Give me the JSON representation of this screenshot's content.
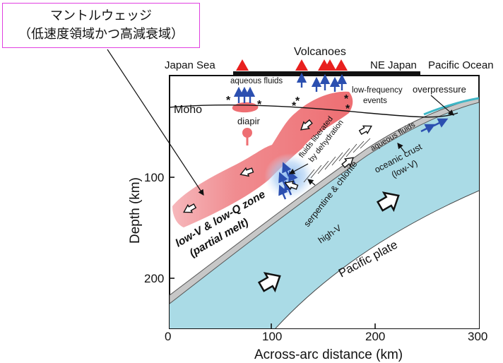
{
  "callout": {
    "line1": "マントルウェッジ",
    "line2": "（低速度領域かつ高減衰域）"
  },
  "top_labels": {
    "japan_sea": "Japan Sea",
    "volcanoes": "Volcanoes",
    "ne_japan": "NE Japan",
    "pacific_ocean": "Pacific Ocean"
  },
  "features": {
    "moho": "Moho",
    "aqueous_fluids_top": "aqueous fluids",
    "low_frequency_1": "low-frequency",
    "low_frequency_2": "events",
    "overpressure": "overpressure",
    "diapir": "diapir",
    "fluids_liberated_1": "fluids liberated",
    "fluids_liberated_2": "by dehydration",
    "aqueous_fluids_slab": "aqueous fluids",
    "oceanic_crust_1": "oceanic crust",
    "oceanic_crust_2": "(low-V)",
    "serpentine": "serpentine & chlorite",
    "high_v": "high-V",
    "pacific_plate": "Pacific plate",
    "low_v_zone_1": "low-V & low-Q zone",
    "low_v_zone_2": "(partial melt)"
  },
  "axes": {
    "x_title": "Across-arc distance (km)",
    "y_title": "Depth (km)",
    "x_ticks": [
      "0",
      "100",
      "200",
      "300"
    ],
    "y_ticks": [
      "100",
      "200"
    ]
  },
  "colors": {
    "slab_fill": "#aadbe6",
    "wedge_fill": "#ee6e72",
    "wedge_faint": "#f7c6c9",
    "fluid_arrow": "#2b4fb0",
    "volcano": "#e8201e",
    "partial_melt_text": "#e8201e",
    "callout_border": "#e040e0"
  }
}
